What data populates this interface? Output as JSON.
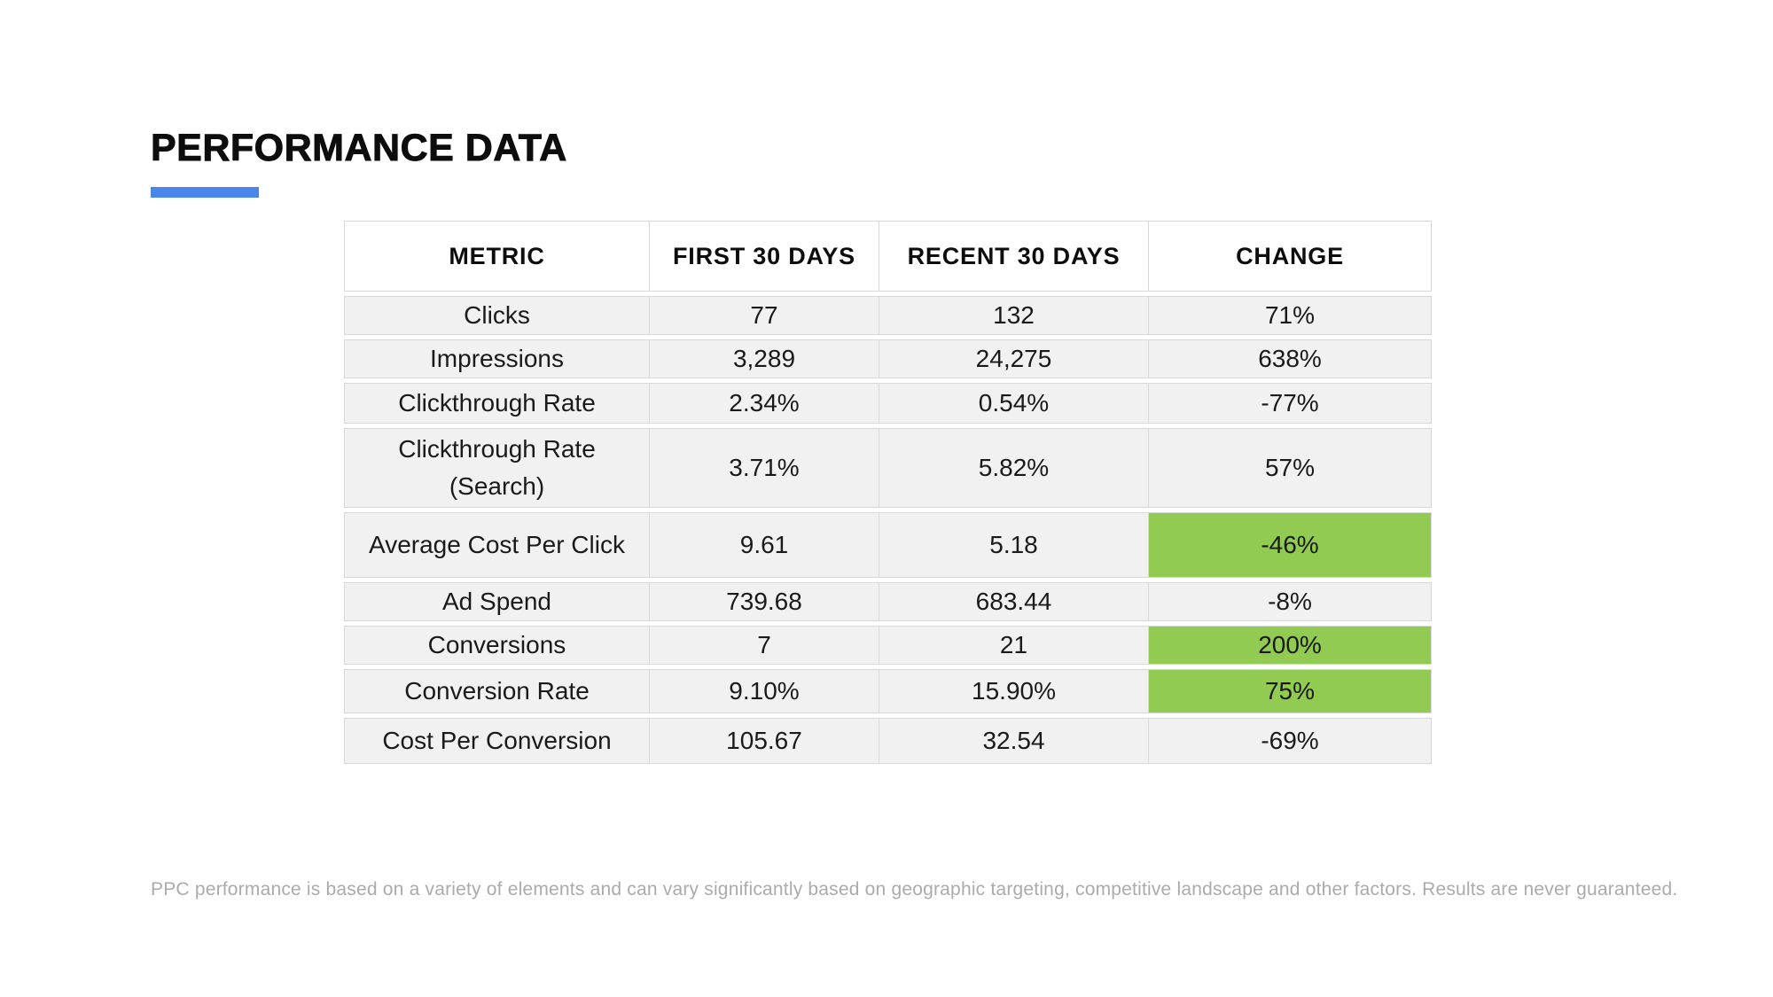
{
  "colors": {
    "accent": "#4A86E8",
    "highlight": "#92CB52",
    "row_bg": "#F1F1F2",
    "border": "#D8D8D8",
    "disclaimer_text": "#ABABAB"
  },
  "header": {
    "title": "PERFORMANCE DATA"
  },
  "table": {
    "columns": [
      "METRIC",
      "FIRST 30 DAYS",
      "RECENT 30 DAYS",
      "CHANGE"
    ],
    "rows": [
      {
        "metric": "Clicks",
        "first": "77",
        "recent": "132",
        "change": "71%",
        "highlight": false
      },
      {
        "metric": "Impressions",
        "first": "3,289",
        "recent": "24,275",
        "change": "638%",
        "highlight": false
      },
      {
        "metric": "Clickthrough Rate",
        "first": "2.34%",
        "recent": "0.54%",
        "change": "-77%",
        "highlight": false
      },
      {
        "metric": "Clickthrough Rate (Search)",
        "first": "3.71%",
        "recent": "5.82%",
        "change": "57%",
        "highlight": false
      },
      {
        "metric": "Average Cost Per Click",
        "first": "9.61",
        "recent": "5.18",
        "change": "-46%",
        "highlight": true
      },
      {
        "metric": "Ad Spend",
        "first": "739.68",
        "recent": "683.44",
        "change": "-8%",
        "highlight": false
      },
      {
        "metric": "Conversions",
        "first": "7",
        "recent": "21",
        "change": "200%",
        "highlight": true
      },
      {
        "metric": "Conversion Rate",
        "first": "9.10%",
        "recent": "15.90%",
        "change": "75%",
        "highlight": true
      },
      {
        "metric": "Cost Per Conversion",
        "first": "105.67",
        "recent": "32.54",
        "change": "-69%",
        "highlight": false
      }
    ]
  },
  "footer": {
    "disclaimer": "PPC performance is based on a variety of elements and can vary significantly based on geographic targeting, competitive landscape and other factors. Results are never guaranteed."
  }
}
